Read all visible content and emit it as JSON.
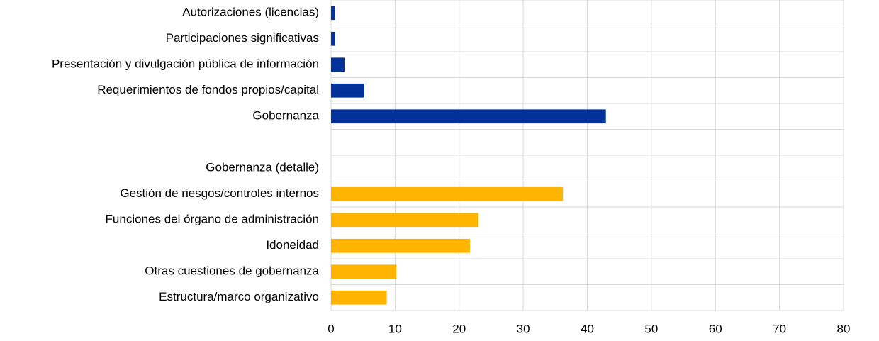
{
  "chart_data": {
    "type": "hbar",
    "categories": [
      "Autorizaciones (licencias)",
      "Participaciones significativas",
      "Presentación y divulgación pública de información",
      "Requerimientos de fondos propios/capital",
      "Gobernanza",
      null,
      "Gobernanza (detalle)",
      "Gestión de riesgos/controles internos",
      "Funciones del órgano de administración",
      "Idoneidad",
      "Otras cuestiones de gobernanza",
      "Estructura/marco organizativo"
    ],
    "values": [
      0.6,
      0.6,
      2.1,
      5.2,
      42.9,
      null,
      null,
      36.2,
      23.0,
      21.7,
      10.2,
      8.7
    ],
    "colors": [
      "#003299",
      "#003299",
      "#003299",
      "#003299",
      "#003299",
      null,
      null,
      "#ffb400",
      "#ffb400",
      "#ffb400",
      "#ffb400",
      "#ffb400"
    ],
    "xlim": [
      0,
      80
    ],
    "xticks": [
      0,
      10,
      20,
      30,
      40,
      50,
      60,
      70,
      80
    ],
    "grid": true
  }
}
